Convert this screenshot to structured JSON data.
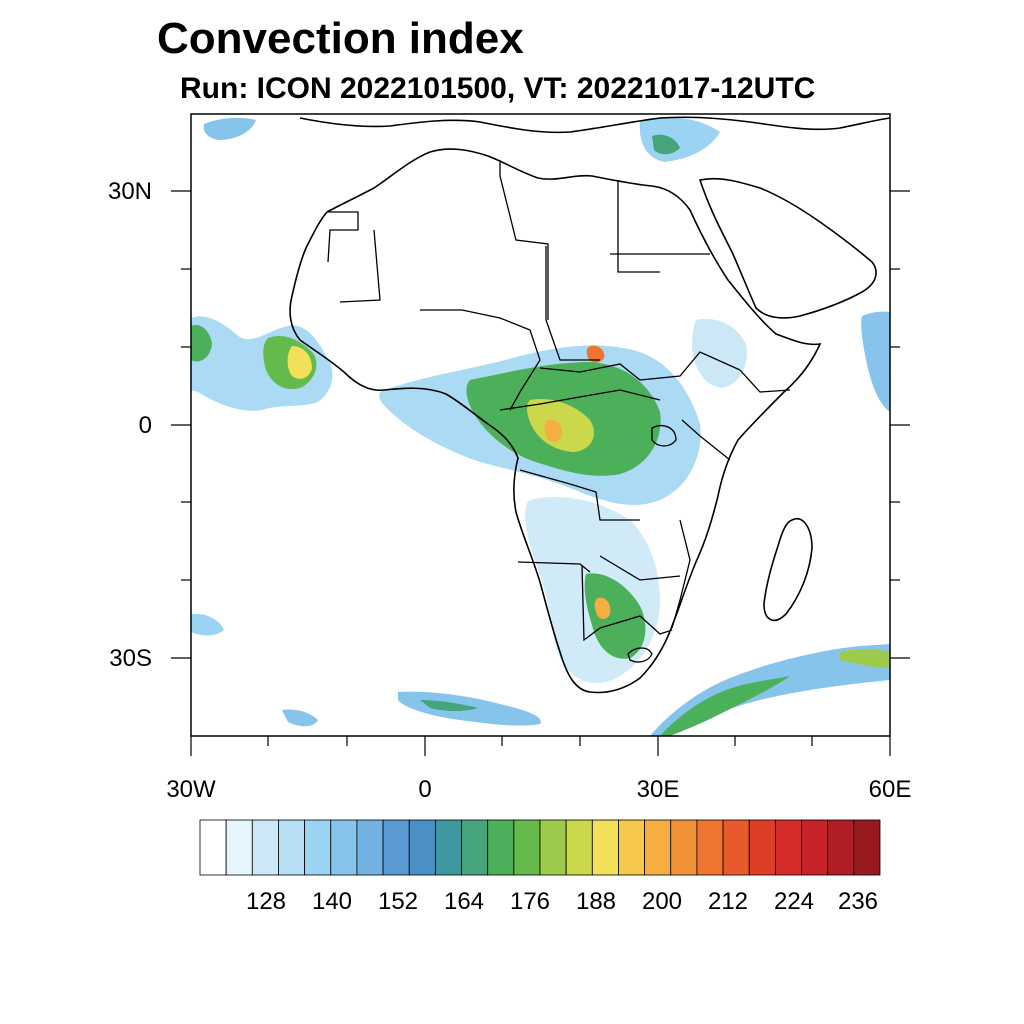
{
  "title": "Convection index",
  "subtitle": "Run: ICON 2022101500,  VT: 20221017-12UTC",
  "map": {
    "region": "Africa",
    "lon_range": [
      -30,
      60
    ],
    "lat_range": [
      -40,
      40
    ],
    "y_ticks": [
      {
        "lat": 30,
        "label": "30N"
      },
      {
        "lat": 0,
        "label": "0"
      },
      {
        "lat": -30,
        "label": "30S"
      }
    ],
    "x_ticks": [
      {
        "lon": -30,
        "label": "30W"
      },
      {
        "lon": 0,
        "label": "0"
      },
      {
        "lon": 30,
        "label": "30E"
      },
      {
        "lon": 60,
        "label": "60E"
      }
    ]
  },
  "colorbar": {
    "colors": [
      "#ffffff",
      "#e8f4fb",
      "#cce8f6",
      "#b6def5",
      "#9bd3f2",
      "#87c4ec",
      "#72b2e3",
      "#5b9bd5",
      "#4b8fc4",
      "#3f97a0",
      "#46a47c",
      "#4cb05a",
      "#64bb4c",
      "#9ccb4b",
      "#cbd84b",
      "#f2e05a",
      "#f8c84d",
      "#f6ad42",
      "#f29236",
      "#ee7530",
      "#e85a2b",
      "#de3e28",
      "#d62b2b",
      "#c5222a",
      "#b11d25",
      "#98191e"
    ],
    "labels": [
      "128",
      "140",
      "152",
      "164",
      "176",
      "188",
      "200",
      "212",
      "224",
      "236"
    ]
  }
}
